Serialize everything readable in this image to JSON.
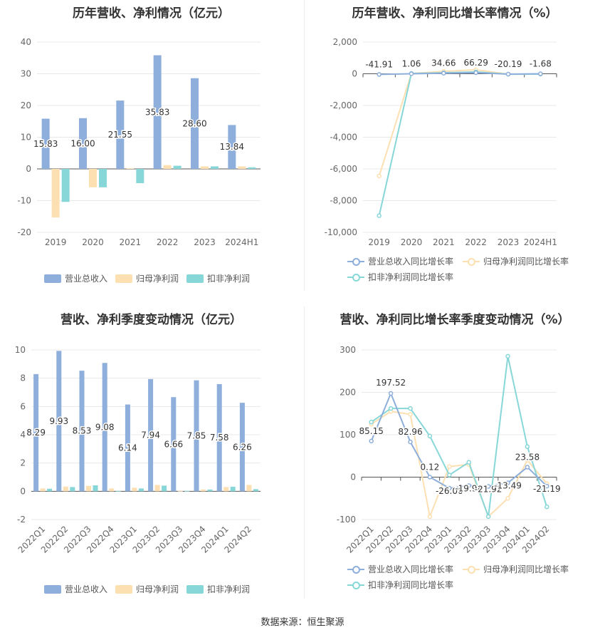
{
  "colors": {
    "revenue": "#8eaedb",
    "net_profit": "#fde0b2",
    "deducted_profit": "#88d7d8",
    "grid": "#e8e8e8",
    "axis": "#666666"
  },
  "source_text": "数据来源：恒生聚源",
  "chart_data": [
    {
      "id": "annual_amounts",
      "type": "bar",
      "title": "历年营收、净利情况（亿元）",
      "categories": [
        "2019",
        "2020",
        "2021",
        "2022",
        "2023",
        "2024H1"
      ],
      "ylim": [
        -20,
        40
      ],
      "yticks": [
        -20,
        -10,
        0,
        10,
        20,
        30,
        40
      ],
      "series": [
        {
          "name": "营业总收入",
          "values": [
            15.83,
            16.0,
            21.55,
            35.83,
            28.6,
            13.84
          ],
          "labels": [
            "15.83",
            "16.00",
            "21.55",
            "35.83",
            "28.60",
            "13.84"
          ]
        },
        {
          "name": "归母净利润",
          "values": [
            -15.3,
            -5.8,
            0.2,
            1.2,
            0.8,
            0.8
          ]
        },
        {
          "name": "扣非净利润",
          "values": [
            -10.4,
            -5.8,
            -4.5,
            1.0,
            0.8,
            0.5
          ]
        }
      ],
      "legend": "bottom"
    },
    {
      "id": "annual_growth",
      "type": "line",
      "title": "历年营收、净利同比增长率情况（%）",
      "categories": [
        "2019",
        "2020",
        "2021",
        "2022",
        "2023",
        "2024H1"
      ],
      "ylim": [
        -10000,
        2000
      ],
      "yticks": [
        -10000,
        -8000,
        -6000,
        -4000,
        -2000,
        0,
        2000
      ],
      "ytick_labels": [
        "-10,000",
        "-8,000",
        "-6,000",
        "-4,000",
        "-2,000",
        "0",
        "2,000"
      ],
      "series": [
        {
          "name": "营业总收入同比增长率",
          "values": [
            -41.91,
            1.06,
            34.66,
            66.29,
            -20.19,
            -1.68
          ],
          "labels": [
            "-41.91",
            "1.06",
            "34.66",
            "66.29",
            "-20.19",
            "-1.68"
          ]
        },
        {
          "name": "归母净利润同比增长率",
          "values": [
            -6450,
            20,
            150,
            250,
            -30,
            -20
          ]
        },
        {
          "name": "扣非净利润同比增长率",
          "values": [
            -8950,
            20,
            60,
            120,
            -30,
            -20
          ]
        }
      ],
      "legend": "bottom"
    },
    {
      "id": "quarterly_amounts",
      "type": "bar",
      "title": "营收、净利季度变动情况（亿元）",
      "categories": [
        "2022Q1",
        "2022Q2",
        "2022Q3",
        "2022Q4",
        "2023Q1",
        "2023Q2",
        "2023Q3",
        "2023Q4",
        "2024Q1",
        "2024Q2"
      ],
      "ylim": [
        -2,
        10
      ],
      "yticks": [
        -2,
        0,
        2,
        4,
        6,
        8,
        10
      ],
      "series": [
        {
          "name": "营业总收入",
          "values": [
            8.29,
            9.93,
            8.53,
            9.08,
            6.14,
            7.94,
            6.66,
            7.85,
            7.58,
            6.26
          ],
          "labels": [
            "8.29",
            "9.93",
            "8.53",
            "9.08",
            "6.14",
            "7.94",
            "6.66",
            "7.85",
            "7.58",
            "6.26"
          ]
        },
        {
          "name": "归母净利润",
          "values": [
            0.2,
            0.33,
            0.38,
            0.2,
            0.25,
            0.45,
            0.02,
            0.12,
            0.3,
            0.45
          ]
        },
        {
          "name": "扣非净利润",
          "values": [
            0.18,
            0.3,
            0.42,
            0.02,
            0.2,
            0.4,
            0.02,
            0.12,
            0.32,
            0.15
          ]
        }
      ],
      "legend": "bottom"
    },
    {
      "id": "quarterly_growth",
      "type": "line",
      "title": "营收、净利同比增长率季度变动情况（%）",
      "categories": [
        "2022Q1",
        "2022Q2",
        "2022Q3",
        "2022Q4",
        "2023Q1",
        "2023Q2",
        "2023Q3",
        "2023Q4",
        "2024Q1",
        "2024Q2"
      ],
      "ylim": [
        -100,
        300
      ],
      "yticks": [
        -100,
        0,
        100,
        200,
        300
      ],
      "series": [
        {
          "name": "营业总收入同比增长率",
          "values": [
            85.15,
            197.52,
            82.96,
            0.12,
            -26.0,
            -19.96,
            -21.92,
            -13.49,
            23.58,
            -21.19
          ],
          "labels": [
            "85.15",
            "197.52",
            "82.96",
            "0.12",
            "-26.00",
            "-19.96",
            "-21.92",
            "-13.49",
            "23.58",
            "-21.19"
          ]
        },
        {
          "name": "归母净利润同比增长率",
          "values": [
            125,
            155,
            148,
            -93,
            25,
            30,
            -93,
            -50,
            40,
            -15
          ]
        },
        {
          "name": "扣非净利润同比增长率",
          "values": [
            130,
            162,
            162,
            97,
            5,
            35,
            -93,
            285,
            72,
            -70
          ]
        }
      ],
      "legend": "bottom"
    }
  ]
}
